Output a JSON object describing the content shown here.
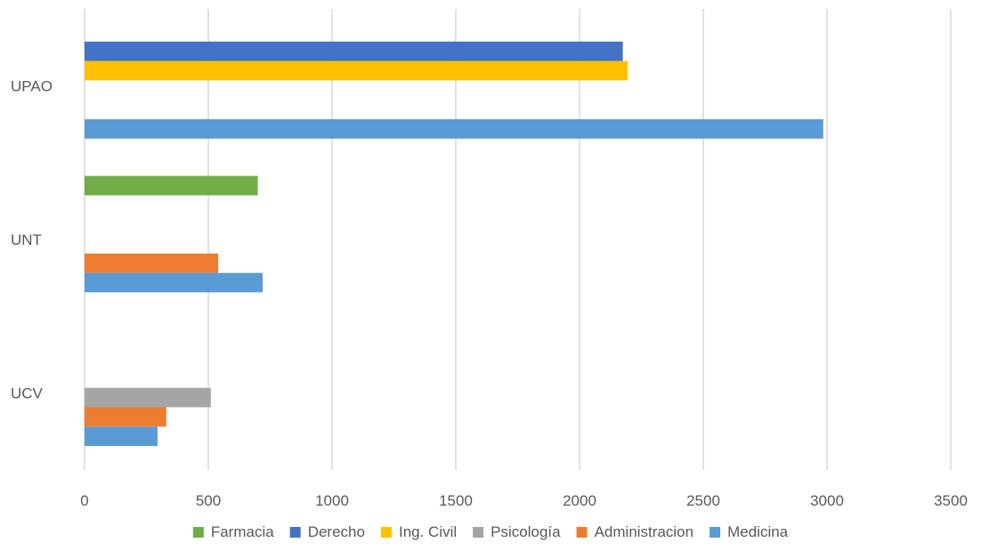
{
  "chart_data": {
    "type": "bar",
    "orientation": "horizontal",
    "title": "",
    "xlabel": "",
    "ylabel": "",
    "xlim": [
      0,
      3500
    ],
    "x_ticks": [
      0,
      500,
      1000,
      1500,
      2000,
      2500,
      3000,
      3500
    ],
    "grid": true,
    "legend_position": "bottom",
    "categories": [
      "UPAO",
      "UNT",
      "UCV"
    ],
    "series": [
      {
        "name": "Farmacia",
        "color": "#70AD47",
        "values": [
          null,
          700,
          null
        ]
      },
      {
        "name": "Derecho",
        "color": "#4472C4",
        "values": [
          2175,
          null,
          null
        ]
      },
      {
        "name": "Ing. Civil",
        "color": "#FFC000",
        "values": [
          2195,
          null,
          null
        ]
      },
      {
        "name": "Psicología",
        "color": "#A5A5A5",
        "values": [
          null,
          null,
          510
        ]
      },
      {
        "name": "Administracion",
        "color": "#ED7D31",
        "values": [
          null,
          540,
          330
        ]
      },
      {
        "name": "Medicina",
        "color": "#5B9BD5",
        "values": [
          2985,
          720,
          295
        ]
      }
    ]
  }
}
